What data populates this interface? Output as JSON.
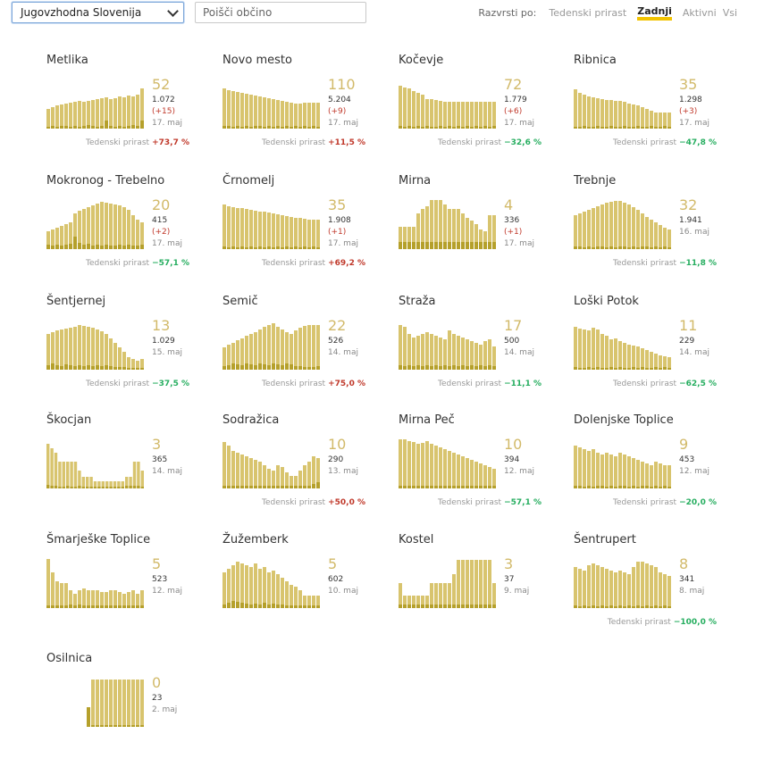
{
  "filter": {
    "region": "Jugovzhodna Slovenija",
    "search_placeholder": "Poišči občino"
  },
  "sort": {
    "label": "Razvrsti po:",
    "options": [
      "Tedenski prirast",
      "Zadnji",
      "Aktivni",
      "Vsi"
    ],
    "active": "Zadnji"
  },
  "weekly_label": "Tedenski prirast",
  "colors": {
    "bar_light": "#d8c46e",
    "bar_dark": "#b5a02b",
    "big_number": "#d2ba6a",
    "increase": "#c0392b",
    "decrease": "#27ae60",
    "active_sort_underline": "#f2c300"
  },
  "municipalities": [
    {
      "name": "Metlika",
      "active": "52",
      "total": "1.072",
      "delta": "(+15)",
      "date": "17. maj",
      "weekly": "+73,7 %",
      "trend": "up",
      "bars": [
        22,
        24,
        26,
        27,
        28,
        29,
        30,
        31,
        30,
        31,
        32,
        33,
        34,
        35,
        33,
        34,
        36,
        35,
        37,
        36,
        38,
        45
      ],
      "dark": [
        2,
        3,
        2,
        3,
        3,
        2,
        3,
        2,
        3,
        4,
        3,
        2,
        3,
        9,
        3,
        2,
        3,
        2,
        3,
        4,
        3,
        9
      ]
    },
    {
      "name": "Novo mesto",
      "active": "110",
      "total": "5.204",
      "delta": "(+9)",
      "date": "17. maj",
      "weekly": "+11,5 %",
      "trend": "up",
      "bars": [
        45,
        43,
        42,
        41,
        40,
        39,
        38,
        37,
        36,
        35,
        34,
        33,
        32,
        31,
        30,
        29,
        28,
        28,
        29,
        29,
        29,
        29
      ],
      "dark": [
        3,
        3,
        2,
        3,
        2,
        3,
        2,
        3,
        3,
        2,
        3,
        2,
        3,
        2,
        3,
        2,
        3,
        2,
        3,
        2,
        3,
        2
      ]
    },
    {
      "name": "Kočevje",
      "active": "72",
      "total": "1.779",
      "delta": "(+6)",
      "date": "17. maj",
      "weekly": "−32,6 %",
      "trend": "down",
      "bars": [
        48,
        46,
        45,
        42,
        40,
        38,
        33,
        33,
        32,
        31,
        30,
        30,
        30,
        30,
        30,
        30,
        30,
        30,
        30,
        30,
        30,
        30
      ],
      "dark": [
        3,
        2,
        3,
        2,
        3,
        2,
        3,
        2,
        2,
        3,
        2,
        3,
        2,
        3,
        2,
        3,
        2,
        3,
        2,
        3,
        2,
        3
      ]
    },
    {
      "name": "Ribnica",
      "active": "35",
      "total": "1.298",
      "delta": "(+3)",
      "date": "17. maj",
      "weekly": "−47,8 %",
      "trend": "down",
      "bars": [
        44,
        40,
        38,
        36,
        35,
        34,
        33,
        32,
        32,
        31,
        31,
        30,
        28,
        27,
        26,
        24,
        22,
        20,
        18,
        18,
        18,
        18
      ],
      "dark": [
        2,
        2,
        3,
        2,
        2,
        3,
        2,
        2,
        3,
        2,
        2,
        3,
        2,
        2,
        3,
        2,
        2,
        3,
        2,
        2,
        3,
        2
      ]
    },
    {
      "name": "Mokronog - Trebelno",
      "active": "20",
      "total": "415",
      "delta": "(+2)",
      "date": "17. maj",
      "weekly": "−57,1 %",
      "trend": "down",
      "bars": [
        20,
        22,
        24,
        26,
        28,
        30,
        40,
        43,
        45,
        47,
        49,
        51,
        53,
        52,
        51,
        50,
        49,
        47,
        44,
        38,
        33,
        30
      ],
      "dark": [
        5,
        4,
        5,
        4,
        5,
        6,
        14,
        7,
        5,
        6,
        4,
        5,
        4,
        5,
        4,
        4,
        5,
        4,
        5,
        4,
        4,
        5
      ]
    },
    {
      "name": "Črnomelj",
      "active": "35",
      "total": "1.908",
      "delta": "(+1)",
      "date": "17. maj",
      "weekly": "+69,2 %",
      "trend": "up",
      "bars": [
        50,
        48,
        47,
        46,
        46,
        45,
        44,
        43,
        42,
        42,
        41,
        40,
        39,
        38,
        37,
        36,
        35,
        35,
        34,
        33,
        33,
        33
      ],
      "dark": [
        3,
        2,
        3,
        2,
        3,
        2,
        3,
        2,
        3,
        2,
        3,
        2,
        3,
        2,
        3,
        2,
        3,
        2,
        3,
        2,
        3,
        2
      ]
    },
    {
      "name": "Mirna",
      "active": "4",
      "total": "336",
      "delta": "(+1)",
      "date": "17. maj",
      "weekly": "",
      "trend": "",
      "bars": [
        25,
        25,
        25,
        25,
        40,
        45,
        48,
        55,
        55,
        55,
        50,
        45,
        45,
        45,
        40,
        35,
        32,
        28,
        22,
        20,
        38,
        38
      ],
      "dark": [
        8,
        8,
        8,
        8,
        8,
        8,
        8,
        8,
        8,
        8,
        8,
        8,
        8,
        8,
        8,
        8,
        8,
        8,
        8,
        8,
        8,
        8
      ]
    },
    {
      "name": "Trebnje",
      "active": "32",
      "total": "1.941",
      "delta": "",
      "date": "16. maj",
      "weekly": "−11,8 %",
      "trend": "down",
      "bars": [
        38,
        40,
        42,
        44,
        46,
        48,
        50,
        52,
        53,
        54,
        54,
        52,
        50,
        47,
        44,
        40,
        36,
        33,
        30,
        27,
        24,
        22
      ],
      "dark": [
        3,
        3,
        2,
        3,
        2,
        3,
        3,
        2,
        3,
        2,
        3,
        3,
        2,
        3,
        2,
        3,
        3,
        2,
        3,
        2,
        3,
        2
      ]
    },
    {
      "name": "Šentjernej",
      "active": "13",
      "total": "1.029",
      "delta": "",
      "date": "15. maj",
      "weekly": "−37,5 %",
      "trend": "down",
      "bars": [
        40,
        42,
        44,
        45,
        46,
        47,
        48,
        50,
        49,
        48,
        47,
        45,
        43,
        40,
        35,
        30,
        25,
        20,
        14,
        12,
        10,
        12
      ],
      "dark": [
        5,
        7,
        5,
        4,
        6,
        5,
        4,
        5,
        4,
        5,
        4,
        5,
        4,
        5,
        4,
        3,
        3,
        3,
        2,
        2,
        2,
        2
      ]
    },
    {
      "name": "Semič",
      "active": "22",
      "total": "526",
      "delta": "",
      "date": "14. maj",
      "weekly": "+75,0 %",
      "trend": "up",
      "bars": [
        25,
        28,
        30,
        33,
        35,
        38,
        40,
        42,
        45,
        48,
        50,
        52,
        48,
        45,
        42,
        40,
        44,
        47,
        49,
        50,
        50,
        50
      ],
      "dark": [
        4,
        5,
        7,
        6,
        5,
        7,
        6,
        5,
        7,
        6,
        5,
        7,
        6,
        5,
        7,
        6,
        4,
        4,
        3,
        3,
        3,
        4
      ]
    },
    {
      "name": "Straža",
      "active": "17",
      "total": "500",
      "delta": "",
      "date": "14. maj",
      "weekly": "−11,1 %",
      "trend": "down",
      "bars": [
        50,
        48,
        40,
        36,
        38,
        40,
        42,
        40,
        38,
        36,
        34,
        44,
        40,
        38,
        36,
        34,
        32,
        30,
        28,
        32,
        34,
        26
      ],
      "dark": [
        5,
        4,
        5,
        4,
        5,
        4,
        5,
        4,
        5,
        4,
        5,
        4,
        5,
        4,
        5,
        4,
        5,
        4,
        5,
        4,
        5,
        4
      ]
    },
    {
      "name": "Loški Potok",
      "active": "11",
      "total": "229",
      "delta": "",
      "date": "14. maj",
      "weekly": "−62,5 %",
      "trend": "down",
      "bars": [
        48,
        46,
        45,
        44,
        47,
        45,
        40,
        38,
        34,
        35,
        32,
        30,
        28,
        27,
        26,
        24,
        22,
        20,
        18,
        16,
        15,
        14
      ],
      "dark": [
        3,
        2,
        2,
        3,
        2,
        3,
        2,
        2,
        3,
        2,
        3,
        2,
        2,
        3,
        2,
        3,
        2,
        2,
        3,
        2,
        3,
        2
      ]
    },
    {
      "name": "Škocjan",
      "active": "3",
      "total": "365",
      "delta": "",
      "date": "14. maj",
      "weekly": "",
      "trend": "",
      "bars": [
        50,
        45,
        40,
        30,
        30,
        30,
        30,
        30,
        20,
        13,
        13,
        13,
        8,
        8,
        8,
        8,
        8,
        8,
        8,
        8,
        13,
        13,
        30,
        30,
        20
      ],
      "dark": [
        4,
        3,
        3,
        2,
        2,
        3,
        2,
        2,
        3,
        2,
        2,
        2,
        2,
        2,
        2,
        2,
        2,
        2,
        2,
        2,
        3,
        3,
        3,
        3,
        2
      ]
    },
    {
      "name": "Sodražica",
      "active": "10",
      "total": "290",
      "delta": "",
      "date": "13. maj",
      "weekly": "+50,0 %",
      "trend": "up",
      "bars": [
        52,
        48,
        42,
        40,
        38,
        36,
        34,
        32,
        30,
        26,
        22,
        20,
        26,
        24,
        18,
        14,
        14,
        20,
        26,
        30,
        36,
        34
      ],
      "dark": [
        3,
        3,
        3,
        3,
        3,
        3,
        3,
        3,
        3,
        3,
        3,
        3,
        3,
        3,
        3,
        3,
        3,
        3,
        3,
        3,
        5,
        7
      ]
    },
    {
      "name": "Mirna Peč",
      "active": "10",
      "total": "394",
      "delta": "",
      "date": "12. maj",
      "weekly": "−57,1 %",
      "trend": "down",
      "bars": [
        55,
        55,
        53,
        52,
        50,
        51,
        53,
        50,
        48,
        46,
        44,
        42,
        40,
        38,
        36,
        34,
        32,
        30,
        28,
        26,
        24,
        22
      ],
      "dark": [
        3,
        3,
        3,
        3,
        3,
        3,
        3,
        3,
        3,
        3,
        3,
        3,
        3,
        3,
        3,
        3,
        3,
        3,
        3,
        3,
        3,
        3
      ]
    },
    {
      "name": "Dolenjske Toplice",
      "active": "9",
      "total": "453",
      "delta": "",
      "date": "12. maj",
      "weekly": "−20,0 %",
      "trend": "down",
      "bars": [
        48,
        46,
        44,
        42,
        44,
        40,
        38,
        40,
        38,
        36,
        40,
        38,
        36,
        34,
        32,
        30,
        28,
        26,
        30,
        28,
        26,
        26
      ],
      "dark": [
        3,
        3,
        2,
        3,
        2,
        3,
        3,
        2,
        3,
        2,
        3,
        3,
        2,
        3,
        2,
        3,
        3,
        2,
        3,
        2,
        3,
        2
      ]
    },
    {
      "name": "Šmarješke Toplice",
      "active": "5",
      "total": "523",
      "delta": "",
      "date": "12. maj",
      "weekly": "",
      "trend": "",
      "bars": [
        55,
        40,
        30,
        28,
        28,
        20,
        16,
        20,
        22,
        20,
        20,
        20,
        18,
        18,
        20,
        20,
        18,
        16,
        18,
        20,
        16,
        20
      ],
      "dark": [
        3,
        3,
        3,
        3,
        3,
        4,
        3,
        4,
        3,
        3,
        3,
        3,
        3,
        3,
        3,
        3,
        3,
        3,
        3,
        3,
        3,
        3
      ]
    },
    {
      "name": "Žužemberk",
      "active": "5",
      "total": "602",
      "delta": "",
      "date": "10. maj",
      "weekly": "",
      "trend": "",
      "bars": [
        40,
        44,
        48,
        52,
        50,
        48,
        46,
        50,
        44,
        46,
        40,
        42,
        38,
        34,
        30,
        26,
        24,
        20,
        14,
        14,
        14,
        14
      ],
      "dark": [
        4,
        6,
        8,
        7,
        6,
        5,
        4,
        5,
        4,
        6,
        4,
        5,
        4,
        4,
        3,
        3,
        3,
        3,
        3,
        3,
        3,
        3
      ]
    },
    {
      "name": "Kostel",
      "active": "3",
      "total": "37",
      "delta": "",
      "date": "9. maj",
      "weekly": "",
      "trend": "",
      "bars": [
        28,
        14,
        14,
        14,
        14,
        14,
        14,
        28,
        28,
        28,
        28,
        28,
        38,
        54,
        54,
        54,
        54,
        54,
        54,
        54,
        54,
        28
      ],
      "dark": [
        4,
        4,
        4,
        4,
        4,
        4,
        4,
        4,
        4,
        4,
        4,
        4,
        4,
        4,
        4,
        4,
        4,
        4,
        4,
        4,
        4,
        4
      ]
    },
    {
      "name": "Šentrupert",
      "active": "8",
      "total": "341",
      "delta": "",
      "date": "8. maj",
      "weekly": "−100,0 %",
      "trend": "down",
      "bars": [
        46,
        44,
        42,
        48,
        50,
        48,
        46,
        44,
        42,
        40,
        42,
        40,
        38,
        46,
        52,
        52,
        50,
        48,
        46,
        40,
        38,
        36
      ],
      "dark": [
        3,
        2,
        3,
        2,
        3,
        2,
        3,
        2,
        3,
        2,
        3,
        2,
        3,
        2,
        3,
        2,
        3,
        2,
        3,
        2,
        3,
        2
      ]
    },
    {
      "name": "Osilnica",
      "active": "0",
      "total": "23",
      "delta": "",
      "date": "2. maj",
      "weekly": "",
      "trend": "",
      "bars": [
        0,
        0,
        0,
        0,
        0,
        0,
        0,
        0,
        0,
        22,
        53,
        53,
        53,
        53,
        53,
        53,
        53,
        53,
        53,
        53,
        53,
        53
      ],
      "dark": [
        0,
        0,
        0,
        0,
        0,
        0,
        0,
        0,
        0,
        22,
        2,
        2,
        2,
        2,
        2,
        2,
        2,
        2,
        2,
        2,
        2,
        2
      ]
    }
  ]
}
